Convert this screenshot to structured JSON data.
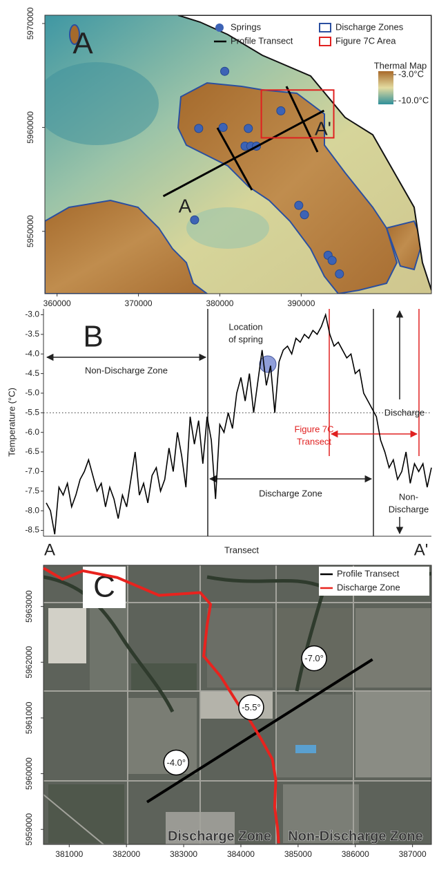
{
  "chart_data": [
    {
      "type": "map",
      "panel": "A",
      "xlim": [
        358500,
        406000
      ],
      "ylim": [
        5944000,
        5970800
      ],
      "xticks": [
        360000,
        370000,
        380000,
        390000
      ],
      "yticks": [
        5950000,
        5960000,
        5970000
      ],
      "transect_labels": [
        "A",
        "A'"
      ],
      "series": [
        {
          "name": "Springs",
          "style": "point",
          "color": "#3d63b5",
          "x": [
            380600,
            377400,
            380400,
            383500,
            383100,
            383800,
            384500,
            387500,
            376900,
            389700,
            390400,
            393300,
            393800,
            394700
          ],
          "y": [
            5965400,
            5959900,
            5960000,
            5959900,
            5958200,
            5958200,
            5958200,
            5961600,
            5951100,
            5952500,
            5951600,
            5947700,
            5947200,
            5945900
          ]
        },
        {
          "name": "Profile Transect",
          "style": "line",
          "color": "#000000",
          "x": [
            373050,
            392800
          ],
          "y": [
            5953380,
            5961620
          ]
        },
        {
          "name": "Discharge Zones",
          "style": "outline",
          "color": "#2a4fa0"
        },
        {
          "name": "Figure 7C Area",
          "style": "rect",
          "color": "#e02020",
          "x": [
            385100,
            394000
          ],
          "y": [
            5959000,
            5963600
          ]
        }
      ],
      "colorbar": {
        "title": "Thermal Map",
        "ticks": [
          {
            "value": -3.0,
            "label": "-3.0°C"
          },
          {
            "value": -10.0,
            "label": "-10.0°C"
          }
        ]
      }
    },
    {
      "type": "line",
      "panel": "B",
      "ylabel": "Temperature (°C)",
      "xlabel": "Transect",
      "x_end_labels": [
        "A",
        "A'"
      ],
      "color": "#000000",
      "values": [
        -7.8,
        -8.0,
        -8.6,
        -7.4,
        -7.6,
        -7.3,
        -7.9,
        -7.6,
        -7.2,
        -7.0,
        -6.7,
        -7.1,
        -7.5,
        -7.3,
        -7.9,
        -7.4,
        -7.7,
        -8.2,
        -7.6,
        -7.9,
        -7.2,
        -6.5,
        -7.6,
        -7.3,
        -7.8,
        -7.1,
        -6.9,
        -7.5,
        -7.2,
        -6.4,
        -7.0,
        -6.0,
        -6.6,
        -7.4,
        -5.6,
        -6.3,
        -5.7,
        -6.8,
        -5.6,
        -6.2,
        -7.7,
        -5.8,
        -6.0,
        -5.5,
        -5.9,
        -5.0,
        -4.6,
        -5.2,
        -4.5,
        -5.5,
        -4.7,
        -3.9,
        -4.8,
        -4.3,
        -5.5,
        -4.2,
        -3.9,
        -3.8,
        -4.0,
        -3.6,
        -3.7,
        -3.5,
        -3.6,
        -3.4,
        -3.5,
        -3.3,
        -3.0,
        -3.5,
        -3.8,
        -3.7,
        -3.9,
        -4.1,
        -4.0,
        -4.5,
        -4.4,
        -5.0,
        -5.2,
        -5.4,
        -5.6,
        -6.2,
        -6.5,
        -6.9,
        -6.7,
        -7.2,
        -7.0,
        -6.5,
        -7.3,
        -6.8,
        -7.0,
        -6.8,
        -7.4,
        -6.9
      ],
      "ylim": [
        -8.65,
        -2.85
      ],
      "yticks": [
        {
          "value": -3,
          "label": "-3.0"
        },
        -3.5,
        {
          "value": -4,
          "label": "-4.0"
        },
        -4.5,
        {
          "value": -5,
          "label": "-5.0"
        },
        -5.5,
        {
          "value": -6,
          "label": "-6.0"
        },
        -6.5,
        {
          "value": -7,
          "label": "-7.0"
        },
        -7.5,
        {
          "value": -8,
          "label": "-8.0"
        },
        -8.5
      ],
      "reference_line": -5.5,
      "annotations": {
        "spring": [
          "Location",
          "of spring"
        ],
        "non_discharge_zone": "Non-Discharge Zone",
        "discharge_zone": "Discharge Zone",
        "discharge": "Discharge",
        "figure_7c_transect": [
          "Figure 7C",
          "Transect"
        ],
        "non_discharge": [
          "Non-",
          "Discharge"
        ]
      }
    },
    {
      "type": "map",
      "panel": "C",
      "xlim": [
        380550,
        387330
      ],
      "ylim": [
        5958730,
        5963740
      ],
      "xticks": [
        381000,
        382000,
        383000,
        384000,
        385000,
        386000,
        387000
      ],
      "yticks": [
        5959000,
        5960000,
        5961000,
        5962000,
        5963000
      ],
      "series": [
        {
          "name": "Profile Transect",
          "style": "line",
          "color": "#000000",
          "x": [
            382360,
            386300
          ],
          "y": [
            5959490,
            5962050
          ]
        },
        {
          "name": "Discharge Zone",
          "style": "line",
          "color": "#e8231e",
          "x": [
            380550,
            380880,
            381240,
            381840,
            382570,
            383290,
            383470,
            383410,
            383350,
            383650,
            383950,
            384130,
            384350,
            384550,
            384610,
            384590,
            384640,
            384660
          ],
          "y": [
            5963690,
            5963490,
            5963640,
            5963520,
            5963200,
            5963250,
            5963040,
            5962670,
            5962110,
            5961740,
            5961250,
            5961000,
            5960630,
            5960260,
            5959890,
            5959400,
            5959030,
            5958750
          ]
        }
      ],
      "markers": {
        "x": [
          382870,
          384180,
          385280
        ],
        "y": [
          5960200,
          5961190,
          5962070
        ],
        "labels": [
          "-4.0°",
          "-5.5°",
          "-7.0°"
        ]
      },
      "zone_labels": [
        "Discharge Zone",
        "Non-Discharge Zone"
      ]
    }
  ]
}
